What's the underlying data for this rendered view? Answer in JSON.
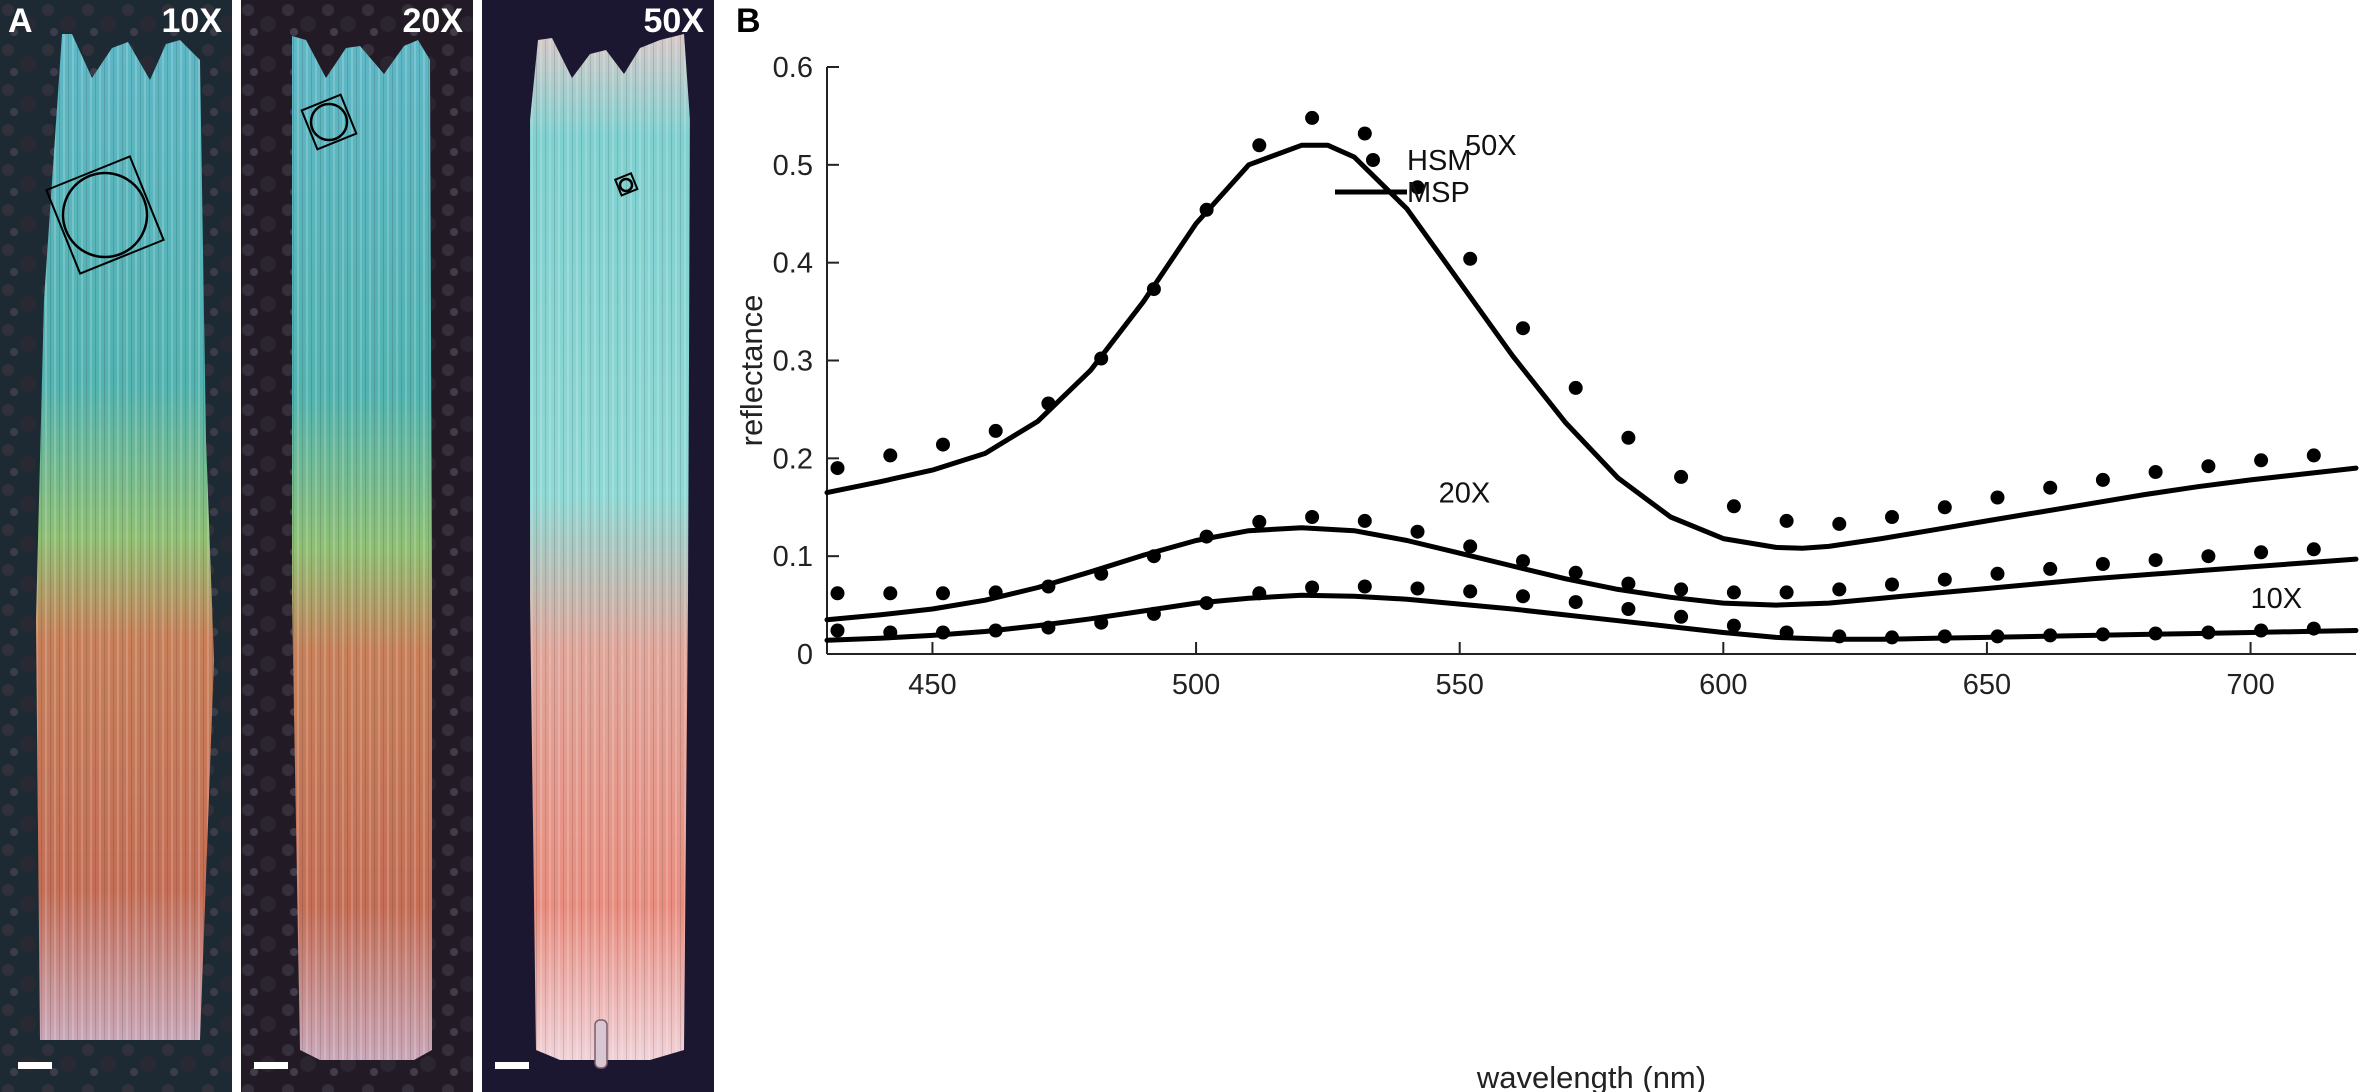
{
  "panel_a": {
    "letter": "A",
    "images": [
      {
        "magnification": "10X",
        "description": "wing scale imaged with 10X objective"
      },
      {
        "magnification": "20X",
        "description": "wing scale imaged with 20X objective"
      },
      {
        "magnification": "50X",
        "description": "wing scale imaged with 50X objective"
      }
    ]
  },
  "panel_b": {
    "letter": "B"
  },
  "colors": {
    "scale_blue": "#3fb0b8",
    "scale_green": "#7ed07a",
    "scale_orange": "#c86a4a",
    "bg_dark": "#1b1720",
    "line": "#000000"
  },
  "chart_data": {
    "type": "line",
    "xlabel": "wavelength (nm)",
    "ylabel": "reflectance",
    "xlim": [
      430,
      720
    ],
    "ylim": [
      0,
      0.6
    ],
    "xticks": [
      450,
      500,
      550,
      600,
      650,
      700
    ],
    "yticks": [
      0,
      0.1,
      0.2,
      0.3,
      0.4,
      0.5,
      0.6
    ],
    "ytick_labels": [
      "0",
      "0.1",
      "0.2",
      "0.3",
      "0.4",
      "0.5",
      "0.6"
    ],
    "legend": {
      "position": "top-right",
      "entries": [
        {
          "name": "HSM",
          "marker": "dot"
        },
        {
          "name": "MSP",
          "marker": "line"
        }
      ]
    },
    "annotations": [
      {
        "text": "50X",
        "x": 551,
        "y": 0.51
      },
      {
        "text": "20X",
        "x": 546,
        "y": 0.155
      },
      {
        "text": "10X",
        "x": 700,
        "y": 0.047
      }
    ],
    "series": [
      {
        "name": "50X",
        "kind": "HSM",
        "x": [
          432,
          442,
          452,
          462,
          472,
          482,
          492,
          502,
          512,
          522,
          532,
          542,
          552,
          562,
          572,
          582,
          592,
          602,
          612,
          622,
          632,
          642,
          652,
          662,
          672,
          682,
          692,
          702,
          712
        ],
        "values": [
          0.19,
          0.203,
          0.214,
          0.228,
          0.256,
          0.302,
          0.373,
          0.454,
          0.52,
          0.548,
          0.532,
          0.477,
          0.404,
          0.333,
          0.272,
          0.221,
          0.181,
          0.151,
          0.136,
          0.133,
          0.14,
          0.15,
          0.16,
          0.17,
          0.178,
          0.186,
          0.192,
          0.198,
          0.203
        ]
      },
      {
        "name": "50X",
        "kind": "MSP",
        "x": [
          430,
          440,
          450,
          460,
          470,
          480,
          490,
          500,
          510,
          520,
          525,
          530,
          540,
          550,
          560,
          570,
          580,
          590,
          600,
          610,
          615,
          620,
          630,
          640,
          650,
          660,
          670,
          680,
          690,
          700,
          710,
          720
        ],
        "values": [
          0.165,
          0.176,
          0.188,
          0.205,
          0.238,
          0.29,
          0.36,
          0.44,
          0.5,
          0.52,
          0.52,
          0.508,
          0.455,
          0.38,
          0.305,
          0.237,
          0.18,
          0.14,
          0.118,
          0.109,
          0.108,
          0.11,
          0.118,
          0.127,
          0.136,
          0.145,
          0.154,
          0.163,
          0.171,
          0.178,
          0.184,
          0.19
        ]
      },
      {
        "name": "20X",
        "kind": "HSM",
        "x": [
          432,
          442,
          452,
          462,
          472,
          482,
          492,
          502,
          512,
          522,
          532,
          542,
          552,
          562,
          572,
          582,
          592,
          602,
          612,
          622,
          632,
          642,
          652,
          662,
          672,
          682,
          692,
          702,
          712
        ],
        "values": [
          0.062,
          0.062,
          0.062,
          0.063,
          0.069,
          0.082,
          0.1,
          0.12,
          0.135,
          0.14,
          0.136,
          0.125,
          0.11,
          0.095,
          0.083,
          0.072,
          0.066,
          0.063,
          0.063,
          0.066,
          0.071,
          0.076,
          0.082,
          0.087,
          0.092,
          0.096,
          0.1,
          0.104,
          0.107
        ]
      },
      {
        "name": "20X",
        "kind": "MSP",
        "x": [
          430,
          440,
          450,
          460,
          470,
          480,
          490,
          500,
          510,
          520,
          530,
          540,
          550,
          560,
          570,
          580,
          590,
          600,
          610,
          620,
          630,
          640,
          650,
          660,
          670,
          680,
          690,
          700,
          710,
          720
        ],
        "values": [
          0.035,
          0.04,
          0.046,
          0.055,
          0.068,
          0.084,
          0.101,
          0.116,
          0.126,
          0.129,
          0.126,
          0.116,
          0.103,
          0.09,
          0.077,
          0.066,
          0.058,
          0.052,
          0.05,
          0.052,
          0.057,
          0.062,
          0.067,
          0.072,
          0.077,
          0.081,
          0.085,
          0.089,
          0.093,
          0.097
        ]
      },
      {
        "name": "10X",
        "kind": "HSM",
        "x": [
          432,
          442,
          452,
          462,
          472,
          482,
          492,
          502,
          512,
          522,
          532,
          542,
          552,
          562,
          572,
          582,
          592,
          602,
          612,
          622,
          632,
          642,
          652,
          662,
          672,
          682,
          692,
          702,
          712
        ],
        "values": [
          0.024,
          0.022,
          0.022,
          0.024,
          0.027,
          0.032,
          0.041,
          0.052,
          0.062,
          0.068,
          0.069,
          0.067,
          0.064,
          0.059,
          0.053,
          0.046,
          0.038,
          0.029,
          0.022,
          0.018,
          0.017,
          0.018,
          0.018,
          0.019,
          0.02,
          0.021,
          0.022,
          0.024,
          0.026
        ]
      },
      {
        "name": "10X",
        "kind": "MSP",
        "x": [
          430,
          440,
          450,
          460,
          470,
          480,
          490,
          500,
          510,
          520,
          530,
          540,
          550,
          560,
          570,
          580,
          590,
          600,
          610,
          620,
          630,
          640,
          650,
          660,
          670,
          680,
          690,
          700,
          710,
          720
        ],
        "values": [
          0.014,
          0.016,
          0.019,
          0.023,
          0.029,
          0.036,
          0.044,
          0.052,
          0.057,
          0.06,
          0.059,
          0.056,
          0.051,
          0.046,
          0.04,
          0.034,
          0.028,
          0.022,
          0.017,
          0.015,
          0.015,
          0.016,
          0.017,
          0.018,
          0.019,
          0.02,
          0.021,
          0.022,
          0.023,
          0.024
        ]
      }
    ]
  }
}
